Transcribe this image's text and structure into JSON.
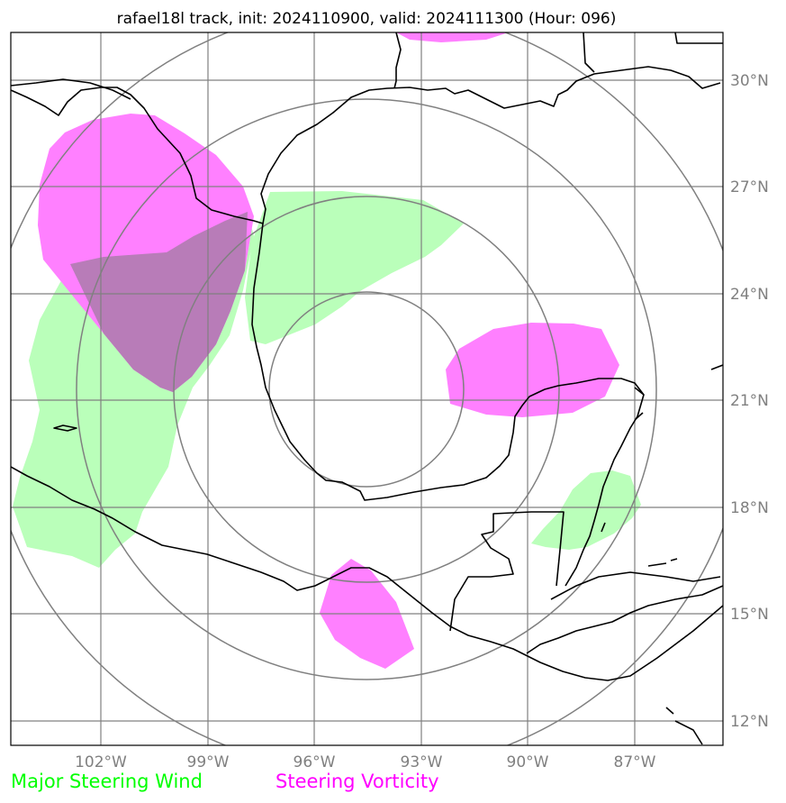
{
  "title": "rafael18l track, init: 2024110900, valid: 2024111300 (Hour: 096)",
  "map": {
    "lon_range": [
      -104.5,
      -84.5
    ],
    "lat_range": [
      11.3,
      31.3
    ],
    "x_ticks": [
      "102°W",
      "99°W",
      "96°W",
      "93°W",
      "90°W",
      "87°W"
    ],
    "y_ticks": [
      "30°N",
      "27°N",
      "24°N",
      "21°N",
      "18°N",
      "15°N",
      "12°N"
    ],
    "gridlines": true,
    "range_rings": 4
  },
  "legend": {
    "wind_label": "Major Steering Wind",
    "vorticity_label": "Steering Vorticity"
  },
  "colors": {
    "wind": "#00ff00",
    "wind_fill": "#baffba",
    "vorticity": "#ff00ff",
    "vorticity_fill": "#ff80ff",
    "overlap": "#b87cb8",
    "grid": "#808080",
    "coast": "#000000"
  }
}
